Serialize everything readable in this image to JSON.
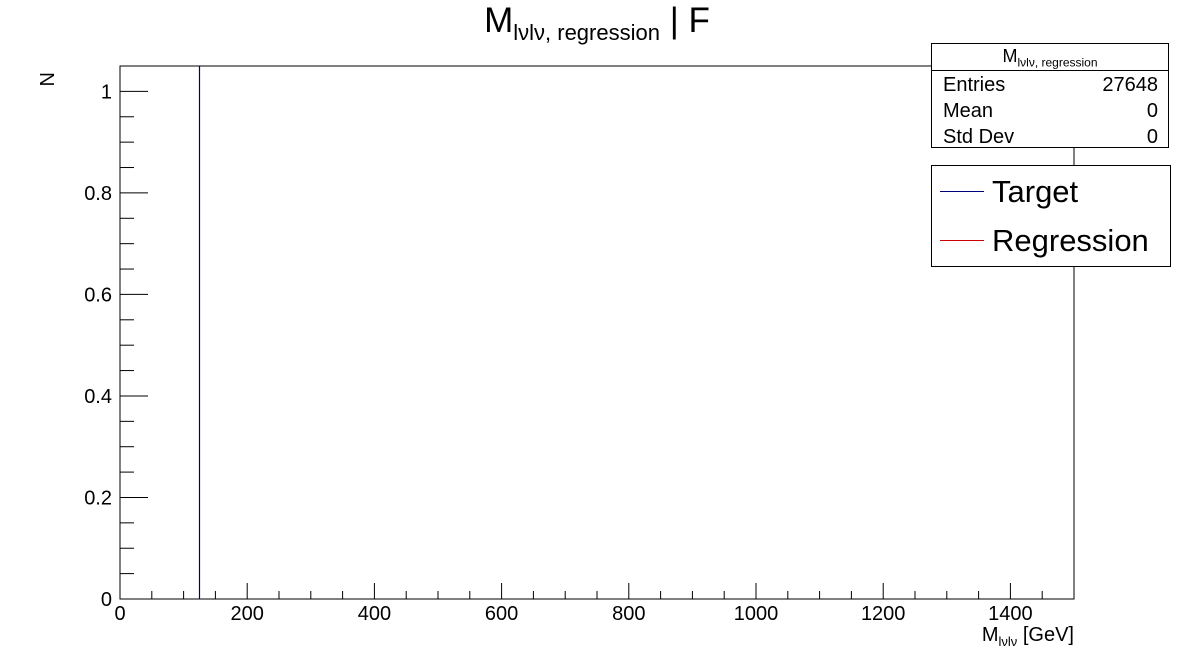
{
  "chart_data": {
    "type": "line",
    "title": {
      "main": "M",
      "sub": "lνlν, regression",
      "suffix": " | F"
    },
    "xlabel": {
      "main": "M",
      "sub": "lνlν",
      "suffix": " [GeV]"
    },
    "ylabel": "N",
    "xlim": [
      0,
      1500
    ],
    "ylim": [
      0,
      1.05
    ],
    "x_ticks": [
      0,
      200,
      400,
      600,
      800,
      1000,
      1200,
      1400
    ],
    "x_tick_labels": [
      "0",
      "200",
      "400",
      "600",
      "800",
      "1000",
      "1200",
      "1400"
    ],
    "y_ticks": [
      0,
      0.2,
      0.4,
      0.6,
      0.8,
      1
    ],
    "y_tick_labels": [
      "0",
      "0.2",
      "0.4",
      "0.6",
      "0.8",
      "1"
    ],
    "grid": false,
    "legend_position": "top-right",
    "series": [
      {
        "name": "Target",
        "color": "#00007f",
        "x": [
          125,
          125
        ],
        "y": [
          0,
          1.05
        ]
      },
      {
        "name": "Regression",
        "color": "#cc0000",
        "x": [],
        "y": []
      }
    ],
    "stats": {
      "title": {
        "main": "M",
        "sub": "lνlν, regression"
      },
      "rows": [
        {
          "label": "Entries",
          "value": "27648"
        },
        {
          "label": "Mean",
          "value": "0"
        },
        {
          "label": "Std Dev",
          "value": "0"
        }
      ]
    }
  }
}
